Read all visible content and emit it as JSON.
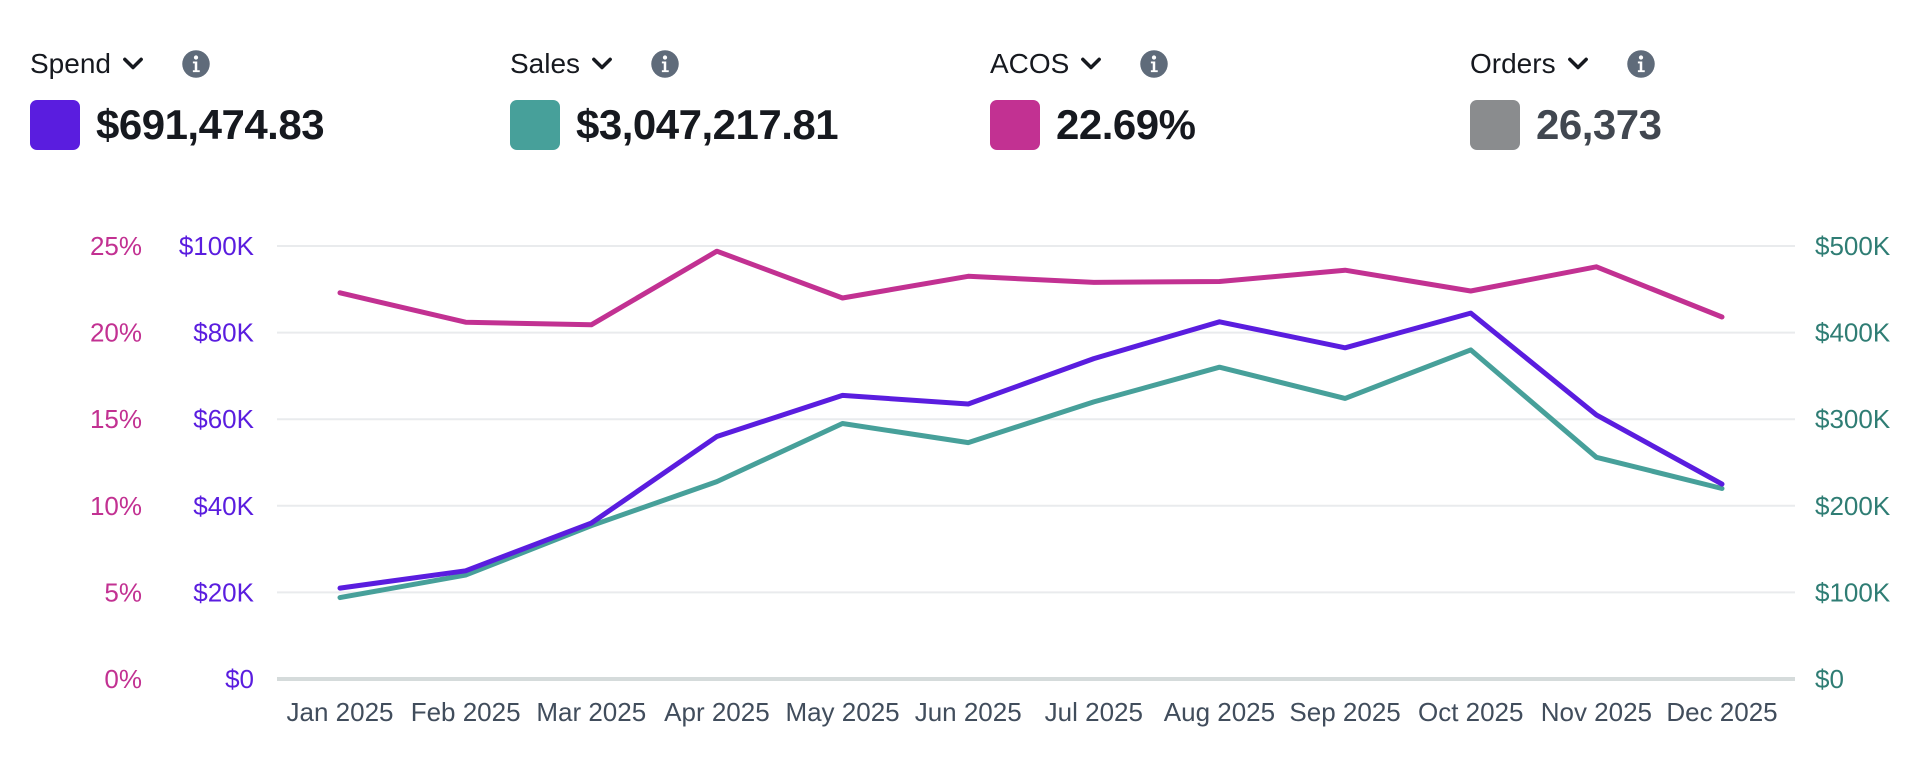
{
  "metrics": [
    {
      "label": "Spend",
      "value": "$691,474.83",
      "color": "#5a1ddf"
    },
    {
      "label": "Sales",
      "value": "$3,047,217.81",
      "color": "#47a09a"
    },
    {
      "label": "ACOS",
      "value": "22.69%",
      "color": "#c23192"
    },
    {
      "label": "Orders",
      "value": "26,373",
      "color": "#8a8c8e",
      "value_color": "#414750"
    }
  ],
  "icons": {
    "dropdown": "chevron-down-icon",
    "info": "info-icon"
  },
  "chart_data": {
    "type": "line",
    "categories": [
      "Jan 2025",
      "Feb 2025",
      "Mar 2025",
      "Apr 2025",
      "May 2025",
      "Jun 2025",
      "Jul 2025",
      "Aug 2025",
      "Sep 2025",
      "Oct 2025",
      "Nov 2025",
      "Dec 2025"
    ],
    "series": [
      {
        "name": "Spend",
        "axis": "left-inner",
        "color": "#5a1ddf",
        "values": [
          21000,
          25000,
          36000,
          56000,
          65500,
          63500,
          74000,
          82500,
          76500,
          84500,
          61000,
          45000
        ]
      },
      {
        "name": "Sales",
        "axis": "right",
        "color": "#47a09a",
        "values": [
          94000,
          120000,
          177000,
          228000,
          295000,
          273000,
          320000,
          360000,
          324000,
          380000,
          256000,
          220000
        ]
      },
      {
        "name": "ACOS",
        "axis": "left-outer",
        "color": "#c23192",
        "values": [
          22.3,
          20.6,
          20.45,
          24.7,
          22.0,
          23.25,
          22.9,
          22.95,
          23.6,
          22.4,
          23.8,
          20.9
        ]
      }
    ],
    "axes": {
      "left_outer": {
        "ticks": [
          "0%",
          "5%",
          "10%",
          "15%",
          "20%",
          "25%"
        ],
        "range": [
          0,
          25
        ],
        "color": "#c23192"
      },
      "left_inner": {
        "ticks": [
          "$0",
          "$20K",
          "$40K",
          "$60K",
          "$80K",
          "$100K"
        ],
        "range": [
          0,
          100000
        ],
        "color": "#5a1ddf"
      },
      "right": {
        "ticks": [
          "$0",
          "$100K",
          "$200K",
          "$300K",
          "$400K",
          "$500K"
        ],
        "range": [
          0,
          500000
        ],
        "color": "#2f7d74"
      }
    },
    "grid": true,
    "legend": "top"
  }
}
